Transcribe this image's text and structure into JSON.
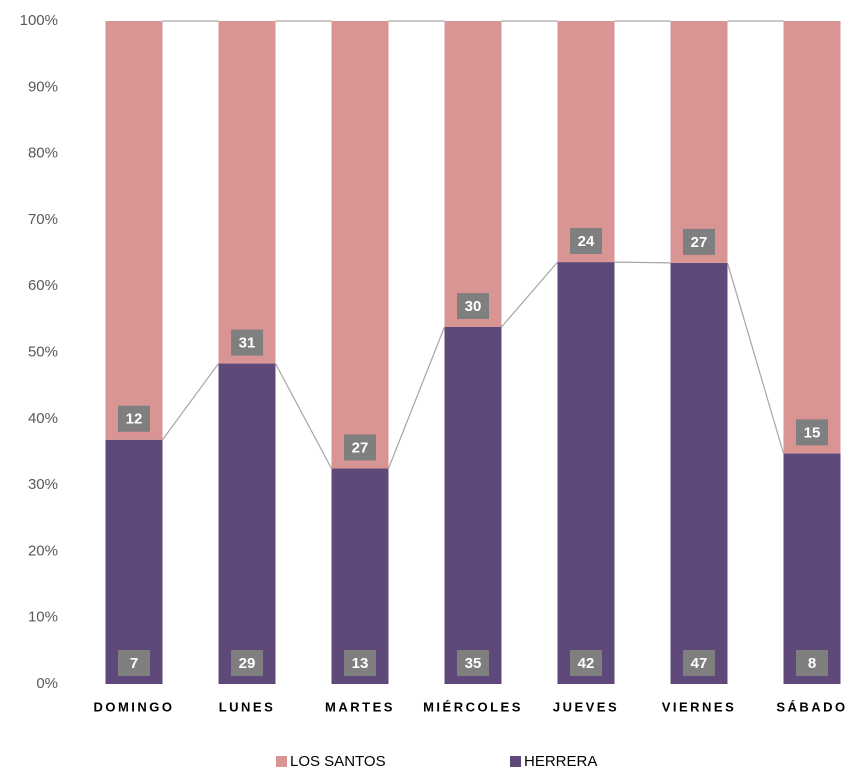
{
  "chart_data": {
    "type": "stacked_percent_bar",
    "categories": [
      "DOMINGO",
      "LUNES",
      "MARTES",
      "MIÉRCOLES",
      "JUEVES",
      "VIERNES",
      "SÁBADO"
    ],
    "series": [
      {
        "name": "HERRERA",
        "color": "#5f497a",
        "values": [
          7,
          29,
          13,
          35,
          42,
          47,
          8
        ]
      },
      {
        "name": "LOS SANTOS",
        "color": "#d99594",
        "values": [
          12,
          31,
          27,
          30,
          24,
          27,
          15
        ]
      }
    ],
    "ylim": [
      0,
      100
    ],
    "yticks": [
      {
        "value": 0,
        "label": "0%"
      },
      {
        "value": 10,
        "label": "10%"
      },
      {
        "value": 20,
        "label": "20%"
      },
      {
        "value": 30,
        "label": "30%"
      },
      {
        "value": 40,
        "label": "40%"
      },
      {
        "value": 50,
        "label": "50%"
      },
      {
        "value": 60,
        "label": "60%"
      },
      {
        "value": 70,
        "label": "70%"
      },
      {
        "value": 80,
        "label": "80%"
      },
      {
        "value": 90,
        "label": "90%"
      },
      {
        "value": 100,
        "label": "100%"
      }
    ],
    "series_lines": true,
    "legend": "bottom"
  }
}
